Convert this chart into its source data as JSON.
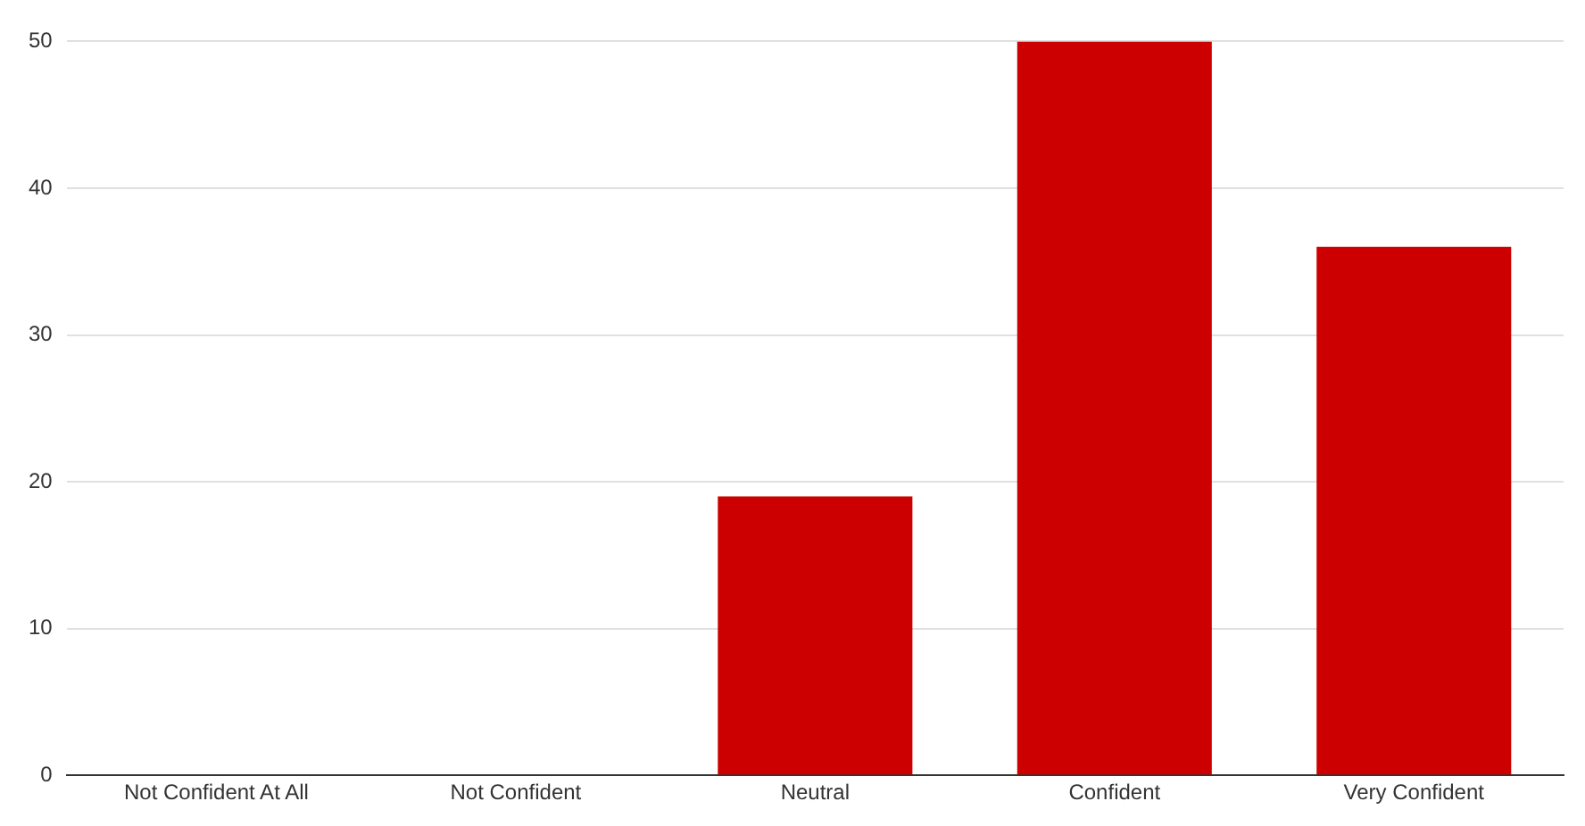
{
  "chart_data": {
    "type": "bar",
    "categories": [
      "Not Confident At All",
      "Not Confident",
      "Neutral",
      "Confident",
      "Very Confident"
    ],
    "values": [
      0,
      0,
      19,
      50,
      36
    ],
    "color": "#cc0000",
    "ylim": [
      0,
      50
    ],
    "yticks": [
      0,
      10,
      20,
      30,
      40,
      50
    ],
    "grid": "y",
    "legend": false
  }
}
